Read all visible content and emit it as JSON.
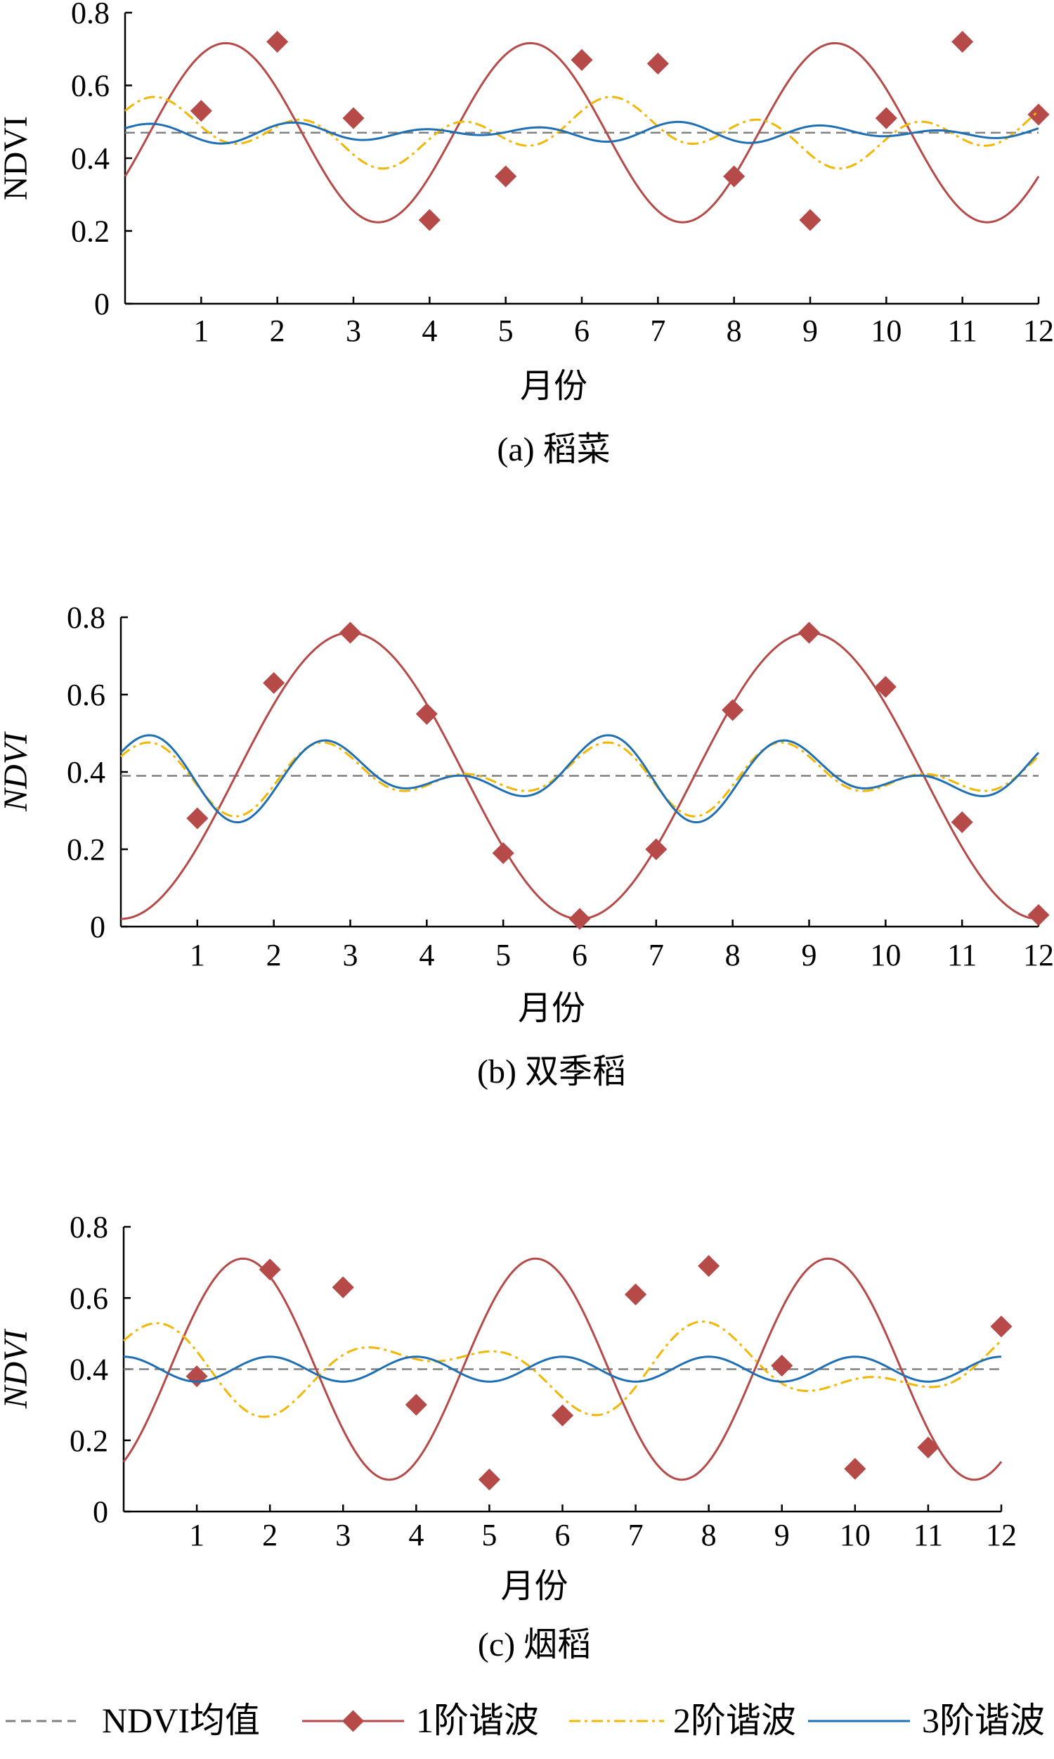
{
  "colors": {
    "mean": "#808080",
    "h1": "#b54a48",
    "h2": "#f2b705",
    "h3": "#1f6fb4"
  },
  "legend": [
    {
      "key": "mean",
      "label": "NDVI均值"
    },
    {
      "key": "h1",
      "label": "1阶谐波"
    },
    {
      "key": "h2",
      "label": "2阶谐波"
    },
    {
      "key": "h3",
      "label": "3阶谐波"
    }
  ],
  "chart_data": [
    {
      "type": "line",
      "caption": "(a) 稻菜",
      "xlabel": "月份",
      "ylabel": "NDVI",
      "ylabel_italic": false,
      "xlim": [
        0,
        12
      ],
      "ylim": [
        0,
        0.8
      ],
      "xticks": [
        "1",
        "2",
        "3",
        "4",
        "5",
        "6",
        "7",
        "8",
        "9",
        "10",
        "11",
        "12"
      ],
      "yticks": [
        "0",
        "0.2",
        "0.4",
        "0.6",
        "0.8"
      ],
      "series": [
        {
          "key": "mean",
          "mean": 0.47
        },
        {
          "key": "h1",
          "mean": 0.47,
          "harmonics": [
            {
              "k": 2,
              "a": 0,
              "b": 0
            },
            {
              "k": 3,
              "a": -0.12,
              "b": 0.215
            }
          ],
          "markers": [
            1,
            2,
            3,
            4,
            5,
            6,
            7,
            8,
            9,
            10,
            11,
            12
          ],
          "marker_values": [
            0.53,
            0.72,
            0.51,
            0.23,
            0.35,
            0.67,
            0.66,
            0.35,
            0.23,
            0.51,
            0.72,
            0.52
          ]
        },
        {
          "key": "h2",
          "mean": 0.47,
          "harmonics": [
            {
              "k": 2,
              "a": 0.04,
              "b": 0.02
            },
            {
              "k": 6,
              "a": 0.02,
              "b": 0.05
            }
          ]
        },
        {
          "key": "h3",
          "mean": 0.47,
          "harmonics": [
            {
              "k": 5,
              "a": 0.012,
              "b": 0.0
            },
            {
              "k": 7,
              "a": 0.0,
              "b": 0.018
            }
          ]
        }
      ]
    },
    {
      "type": "line",
      "caption": "(b) 双季稻",
      "xlabel": "月份",
      "ylabel": "NDVI",
      "ylabel_italic": true,
      "xlim": [
        0,
        12
      ],
      "ylim": [
        0,
        0.8
      ],
      "xticks": [
        "1",
        "2",
        "3",
        "4",
        "5",
        "6",
        "7",
        "8",
        "9",
        "10",
        "11",
        "12"
      ],
      "yticks": [
        "0",
        "0.2",
        "0.4",
        "0.6",
        "0.8"
      ],
      "series": [
        {
          "key": "mean",
          "mean": 0.39
        },
        {
          "key": "h1",
          "mean": 0.39,
          "harmonics": [
            {
              "k": 2,
              "a": -0.37,
              "b": 0.0
            }
          ],
          "markers": [
            1,
            2,
            3,
            4,
            5,
            6,
            7,
            8,
            9,
            10,
            11,
            12
          ],
          "marker_values": [
            0.28,
            0.63,
            0.76,
            0.55,
            0.19,
            0.02,
            0.2,
            0.56,
            0.76,
            0.62,
            0.27,
            0.03
          ]
        },
        {
          "key": "h2",
          "mean": 0.39,
          "harmonics": [
            {
              "k": 4,
              "a": 0.05,
              "b": 0.0
            },
            {
              "k": 6,
              "a": 0.0,
              "b": 0.055
            }
          ]
        },
        {
          "key": "h3",
          "mean": 0.39,
          "harmonics": [
            {
              "k": 4,
              "a": 0.06,
              "b": 0.01
            },
            {
              "k": 6,
              "a": 0.0,
              "b": 0.06
            }
          ]
        }
      ]
    },
    {
      "type": "line",
      "caption": "(c) 烟稻",
      "xlabel": "月份",
      "ylabel": "NDVI",
      "ylabel_italic": true,
      "xlim": [
        0,
        12
      ],
      "ylim": [
        0,
        0.8
      ],
      "xticks": [
        "1",
        "2",
        "3",
        "4",
        "5",
        "6",
        "7",
        "8",
        "9",
        "10",
        "11",
        "12"
      ],
      "yticks": [
        "0",
        "0.2",
        "0.4",
        "0.6",
        "0.8"
      ],
      "series": [
        {
          "key": "mean",
          "mean": 0.4
        },
        {
          "key": "h1",
          "mean": 0.4,
          "harmonics": [
            {
              "k": 3,
              "a": -0.26,
              "b": 0.17
            }
          ],
          "markers": [
            1,
            2,
            3,
            4,
            5,
            6,
            7,
            8,
            9,
            10,
            11,
            12
          ],
          "marker_values": [
            0.38,
            0.68,
            0.63,
            0.3,
            0.09,
            0.27,
            0.61,
            0.69,
            0.41,
            0.12,
            0.18,
            0.52
          ]
        },
        {
          "key": "h2",
          "mean": 0.4,
          "harmonics": [
            {
              "k": 3,
              "a": 0.08,
              "b": 0.02
            },
            {
              "k": 5,
              "a": 0.0,
              "b": 0.06
            }
          ]
        },
        {
          "key": "h3",
          "mean": 0.4,
          "harmonics": [
            {
              "k": 6,
              "a": 0.035,
              "b": 0.0
            }
          ]
        }
      ]
    }
  ]
}
